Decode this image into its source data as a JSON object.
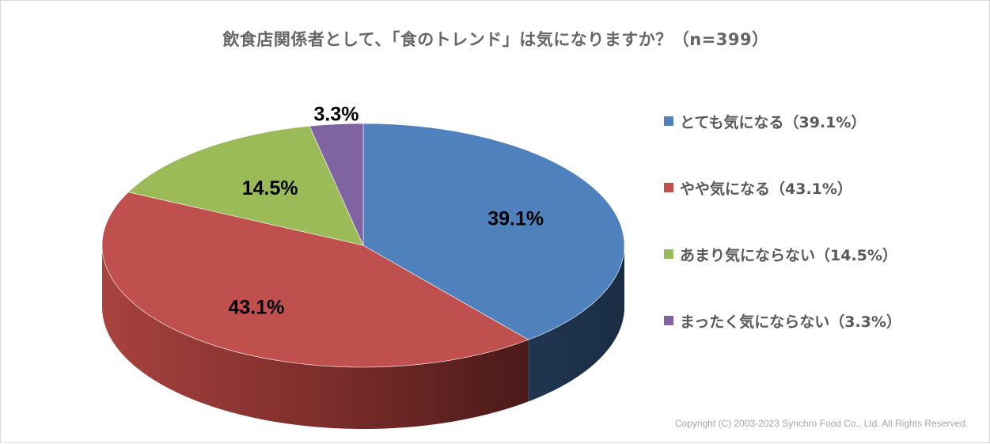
{
  "title": "飲食店関係者として、「食のトレンド」は気になりますか？（n=399）",
  "copyright": "Copyright (C) 2003-2023   Synchro Food Co., Ltd. All Rights Reserved.",
  "chart_data": {
    "type": "pie",
    "title": "飲食店関係者として、「食のトレンド」は気になりますか？（n=399）",
    "legend_position": "right",
    "slices": [
      {
        "name": "とても気になる（39.1%）",
        "value": 39.1,
        "label": "39.1%",
        "color": "#4f81bd"
      },
      {
        "name": "やや気になる（43.1%）",
        "value": 43.1,
        "label": "43.1%",
        "color": "#c0504d"
      },
      {
        "name": "あまり気にならない（14.5%）",
        "value": 14.5,
        "label": "14.5%",
        "color": "#9bbb59"
      },
      {
        "name": "まったく気にならない（3.3%）",
        "value": 3.3,
        "label": "3.3%",
        "color": "#8064a2"
      }
    ]
  }
}
